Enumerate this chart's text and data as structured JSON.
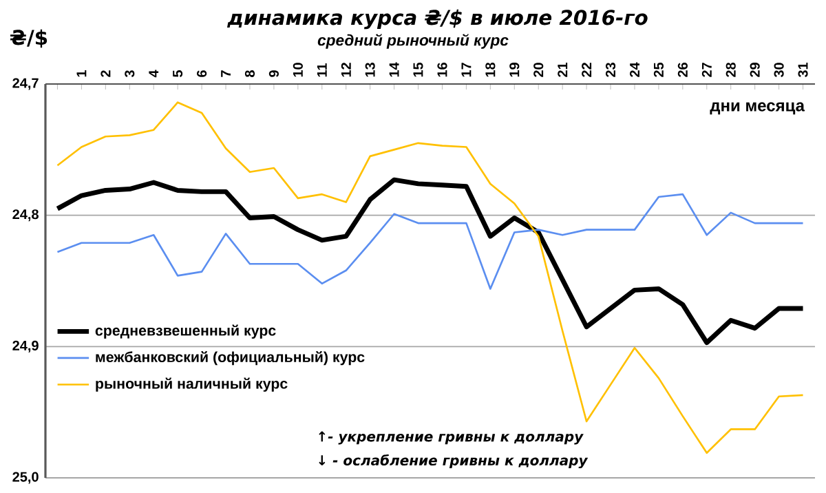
{
  "chart_data": {
    "type": "line",
    "title": "динамика курса ₴/$ в июле 2016-го",
    "subtitle": "средний рыночный курс",
    "xlabel": "дни месяца",
    "ylabel": "₴/$",
    "categories": [
      null,
      "1",
      "2",
      "3",
      "4",
      "5",
      "6",
      "7",
      "8",
      "9",
      "10",
      "11",
      "12",
      "13",
      "14",
      "15",
      "16",
      "17",
      "18",
      "19",
      "20",
      "21",
      "22",
      "23",
      "24",
      "25",
      "26",
      "27",
      "28",
      "29",
      "30",
      "31"
    ],
    "series": [
      {
        "name": "средневзвешенный курс",
        "color": "#000000",
        "values": [
          24.795,
          24.785,
          24.781,
          24.78,
          24.775,
          24.781,
          24.782,
          24.782,
          24.802,
          24.801,
          24.811,
          24.819,
          24.816,
          24.788,
          24.773,
          24.776,
          24.777,
          24.778,
          24.816,
          24.802,
          24.813,
          24.849,
          24.885,
          24.871,
          24.857,
          24.856,
          24.868,
          24.897,
          24.88,
          24.886,
          24.871,
          24.871
        ]
      },
      {
        "name": "межбанковский (официальный) курс",
        "color": "#5b8ef0",
        "values": [
          24.828,
          24.821,
          24.821,
          24.821,
          24.815,
          24.846,
          24.843,
          24.814,
          24.837,
          24.837,
          24.837,
          24.852,
          24.842,
          24.821,
          24.799,
          24.806,
          24.806,
          24.806,
          24.856,
          24.813,
          24.811,
          24.815,
          24.811,
          24.811,
          24.811,
          24.786,
          24.784,
          24.815,
          24.798,
          24.806,
          24.806,
          24.806
        ]
      },
      {
        "name": "рыночный наличный курс",
        "color": "#ffc000",
        "values": [
          24.762,
          24.748,
          24.74,
          24.739,
          24.735,
          24.714,
          24.722,
          24.749,
          24.767,
          24.764,
          24.787,
          24.784,
          24.79,
          24.755,
          24.75,
          24.745,
          24.747,
          24.748,
          24.776,
          24.791,
          24.816,
          24.888,
          24.957,
          24.929,
          24.901,
          24.924,
          24.953,
          24.981,
          24.963,
          24.963,
          24.938,
          24.937
        ]
      }
    ],
    "ylim": [
      25.0,
      24.7
    ],
    "yticks": [
      {
        "value": 24.7,
        "label": "24,7"
      },
      {
        "value": 24.8,
        "label": "24,8"
      },
      {
        "value": 24.9,
        "label": "24,9"
      },
      {
        "value": 25.0,
        "label": "25,0"
      }
    ],
    "grid": "y",
    "legend": "bottom left",
    "marker": "none",
    "line_style": "solid",
    "annotations": [
      "↑- укрепление гривны к доллару",
      "↓ - ослабление гривны к доллару"
    ]
  }
}
